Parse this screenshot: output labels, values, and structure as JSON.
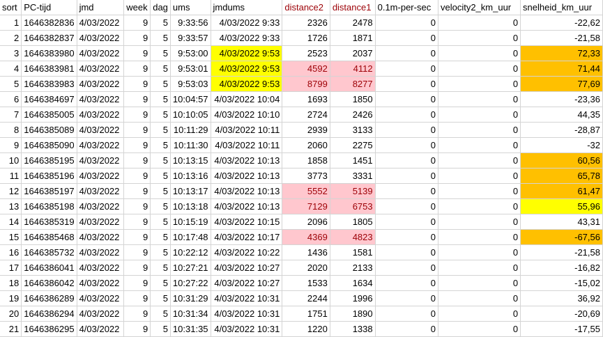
{
  "columns": [
    "sort",
    "PC-tijd",
    "jmd",
    "week",
    "dag",
    "ums",
    "jmdums",
    "distance2",
    "distance1",
    "0.1m-per-sec",
    "velocity2_km_uur",
    "snelheid_km_uur"
  ],
  "header_highlight": {
    "distance2": "red-text",
    "distance1": "red-text"
  },
  "colors": {
    "pink_fill": "#ffc7ce",
    "pink_text": "#9c0006",
    "yellow": "#ffff00",
    "orange": "#ffc000",
    "grid": "#d4d4d4"
  },
  "rows": [
    {
      "cells": [
        "1",
        "1646382836",
        "4/03/2022",
        "9",
        "5",
        "9:33:56",
        "4/03/2022 9:33",
        "2326",
        "2478",
        "0",
        "0",
        "-22,62"
      ],
      "hl": {}
    },
    {
      "cells": [
        "2",
        "1646382837",
        "4/03/2022",
        "9",
        "5",
        "9:33:57",
        "4/03/2022 9:33",
        "1726",
        "1871",
        "0",
        "0",
        "-21,58"
      ],
      "hl": {}
    },
    {
      "cells": [
        "3",
        "1646383980",
        "4/03/2022",
        "9",
        "5",
        "9:53:00",
        "4/03/2022 9:53",
        "2523",
        "2037",
        "0",
        "0",
        "72,33"
      ],
      "hl": {
        "6": "hl-yellow",
        "11": "hl-orange"
      }
    },
    {
      "cells": [
        "4",
        "1646383981",
        "4/03/2022",
        "9",
        "5",
        "9:53:01",
        "4/03/2022 9:53",
        "4592",
        "4112",
        "0",
        "0",
        "71,44"
      ],
      "hl": {
        "6": "hl-yellow",
        "7": "hl-pink",
        "8": "hl-pink",
        "11": "hl-orange"
      }
    },
    {
      "cells": [
        "5",
        "1646383983",
        "4/03/2022",
        "9",
        "5",
        "9:53:03",
        "4/03/2022 9:53",
        "8799",
        "8277",
        "0",
        "0",
        "77,69"
      ],
      "hl": {
        "6": "hl-yellow",
        "7": "hl-pink",
        "8": "hl-pink",
        "11": "hl-orange"
      }
    },
    {
      "cells": [
        "6",
        "1646384697",
        "4/03/2022",
        "9",
        "5",
        "10:04:57",
        "4/03/2022 10:04",
        "1693",
        "1850",
        "0",
        "0",
        "-23,36"
      ],
      "hl": {}
    },
    {
      "cells": [
        "7",
        "1646385005",
        "4/03/2022",
        "9",
        "5",
        "10:10:05",
        "4/03/2022 10:10",
        "2724",
        "2426",
        "0",
        "0",
        "44,35"
      ],
      "hl": {}
    },
    {
      "cells": [
        "8",
        "1646385089",
        "4/03/2022",
        "9",
        "5",
        "10:11:29",
        "4/03/2022 10:11",
        "2939",
        "3133",
        "0",
        "0",
        "-28,87"
      ],
      "hl": {}
    },
    {
      "cells": [
        "9",
        "1646385090",
        "4/03/2022",
        "9",
        "5",
        "10:11:30",
        "4/03/2022 10:11",
        "2060",
        "2275",
        "0",
        "0",
        "-32"
      ],
      "hl": {}
    },
    {
      "cells": [
        "10",
        "1646385195",
        "4/03/2022",
        "9",
        "5",
        "10:13:15",
        "4/03/2022 10:13",
        "1858",
        "1451",
        "0",
        "0",
        "60,56"
      ],
      "hl": {
        "11": "hl-orange"
      }
    },
    {
      "cells": [
        "11",
        "1646385196",
        "4/03/2022",
        "9",
        "5",
        "10:13:16",
        "4/03/2022 10:13",
        "3773",
        "3331",
        "0",
        "0",
        "65,78"
      ],
      "hl": {
        "11": "hl-orange"
      }
    },
    {
      "cells": [
        "12",
        "1646385197",
        "4/03/2022",
        "9",
        "5",
        "10:13:17",
        "4/03/2022 10:13",
        "5552",
        "5139",
        "0",
        "0",
        "61,47"
      ],
      "hl": {
        "7": "hl-pink",
        "8": "hl-pink",
        "11": "hl-orange"
      }
    },
    {
      "cells": [
        "13",
        "1646385198",
        "4/03/2022",
        "9",
        "5",
        "10:13:18",
        "4/03/2022 10:13",
        "7129",
        "6753",
        "0",
        "0",
        "55,96"
      ],
      "hl": {
        "7": "hl-pink",
        "8": "hl-pink",
        "11": "hl-yellow"
      }
    },
    {
      "cells": [
        "14",
        "1646385319",
        "4/03/2022",
        "9",
        "5",
        "10:15:19",
        "4/03/2022 10:15",
        "2096",
        "1805",
        "0",
        "0",
        "43,31"
      ],
      "hl": {}
    },
    {
      "cells": [
        "15",
        "1646385468",
        "4/03/2022",
        "9",
        "5",
        "10:17:48",
        "4/03/2022 10:17",
        "4369",
        "4823",
        "0",
        "0",
        "-67,56"
      ],
      "hl": {
        "7": "hl-pink",
        "8": "hl-pink",
        "11": "hl-orange"
      }
    },
    {
      "cells": [
        "16",
        "1646385732",
        "4/03/2022",
        "9",
        "5",
        "10:22:12",
        "4/03/2022 10:22",
        "1436",
        "1581",
        "0",
        "0",
        "-21,58"
      ],
      "hl": {}
    },
    {
      "cells": [
        "17",
        "1646386041",
        "4/03/2022",
        "9",
        "5",
        "10:27:21",
        "4/03/2022 10:27",
        "2020",
        "2133",
        "0",
        "0",
        "-16,82"
      ],
      "hl": {}
    },
    {
      "cells": [
        "18",
        "1646386042",
        "4/03/2022",
        "9",
        "5",
        "10:27:22",
        "4/03/2022 10:27",
        "1533",
        "1634",
        "0",
        "0",
        "-15,02"
      ],
      "hl": {}
    },
    {
      "cells": [
        "19",
        "1646386289",
        "4/03/2022",
        "9",
        "5",
        "10:31:29",
        "4/03/2022 10:31",
        "2244",
        "1996",
        "0",
        "0",
        "36,92"
      ],
      "hl": {}
    },
    {
      "cells": [
        "20",
        "1646386294",
        "4/03/2022",
        "9",
        "5",
        "10:31:34",
        "4/03/2022 10:31",
        "1751",
        "1890",
        "0",
        "0",
        "-20,69"
      ],
      "hl": {}
    },
    {
      "cells": [
        "21",
        "1646386295",
        "4/03/2022",
        "9",
        "5",
        "10:31:35",
        "4/03/2022 10:31",
        "1220",
        "1338",
        "0",
        "0",
        "-17,55"
      ],
      "hl": {}
    }
  ]
}
